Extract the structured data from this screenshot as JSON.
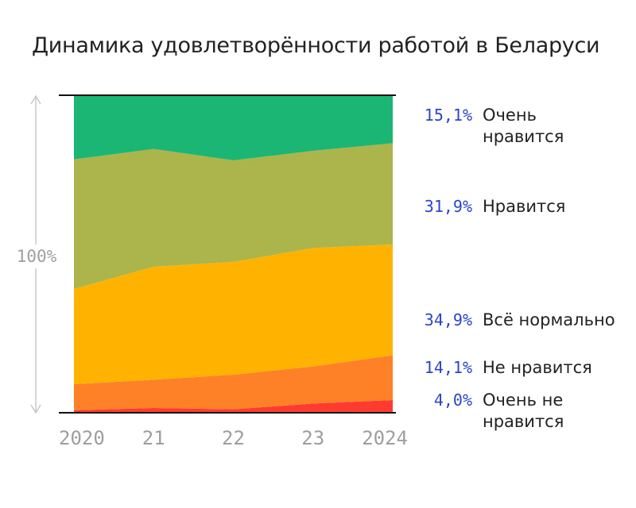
{
  "title": "Динамика удовлетворённости работой в Беларуси",
  "chart_data": {
    "type": "area",
    "stacked": true,
    "normalized": true,
    "title": "Динамика удовлетворённости работой в Беларуси",
    "y_axis_label": "100%",
    "x": [
      "2020",
      "21",
      "22",
      "23",
      "2024"
    ],
    "ylim": [
      0,
      100
    ],
    "grid": false,
    "legend_position": "right",
    "series": [
      {
        "name": "Очень не нравится",
        "name_lines": [
          "Очень не",
          "нравится"
        ],
        "label": "4,0%",
        "color": "#ff3b2f",
        "values": [
          0.8,
          1.5,
          1.1,
          2.9,
          4.0
        ]
      },
      {
        "name": "Не нравится",
        "name_lines": [
          "Не нравится"
        ],
        "label": "14,1%",
        "color": "#ff8127",
        "values": [
          8.2,
          8.9,
          10.9,
          11.7,
          14.1
        ]
      },
      {
        "name": "Всё нормально",
        "name_lines": [
          "Всё нормально"
        ],
        "label": "34,9%",
        "color": "#ffb300",
        "values": [
          30.0,
          35.6,
          35.5,
          37.3,
          34.9
        ]
      },
      {
        "name": "Нравится",
        "name_lines": [
          "Нравится"
        ],
        "label": "31,9%",
        "color": "#acb44c",
        "values": [
          40.8,
          37.1,
          32.0,
          30.6,
          31.9
        ]
      },
      {
        "name": "Очень нравится",
        "name_lines": [
          "Очень",
          "нравится"
        ],
        "label": "15,1%",
        "color": "#1bb574",
        "values": [
          20.2,
          16.9,
          20.5,
          17.5,
          15.1
        ]
      }
    ]
  }
}
